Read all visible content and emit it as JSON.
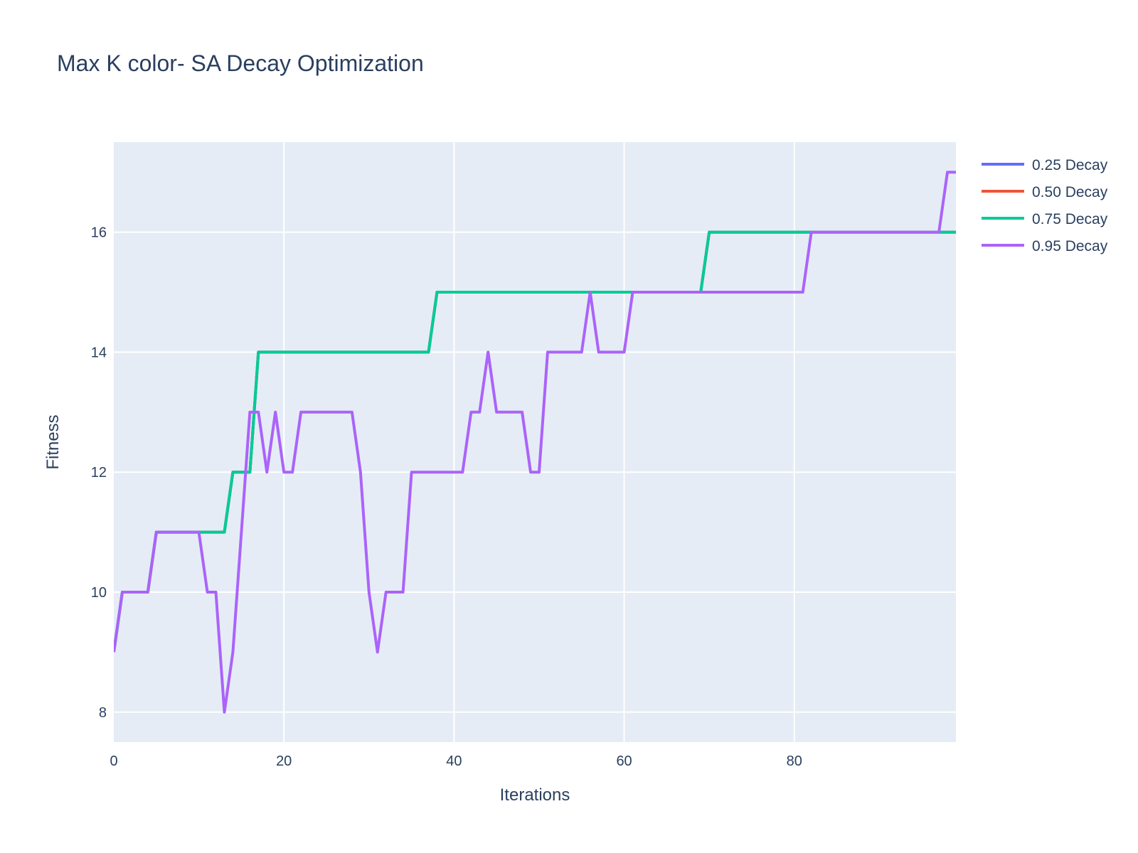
{
  "chart_data": {
    "type": "line",
    "title": "Max K color- SA Decay Optimization",
    "xlabel": "Iterations",
    "ylabel": "Fitness",
    "xlim": [
      0,
      99
    ],
    "ylim": [
      7.5,
      17.5
    ],
    "x_ticks": [
      0,
      20,
      40,
      60,
      80
    ],
    "x_tick_labels": [
      "0",
      "20",
      "40",
      "60",
      "80"
    ],
    "y_ticks": [
      8,
      10,
      12,
      14,
      16
    ],
    "y_tick_labels": [
      "8",
      "10",
      "12",
      "14",
      "16"
    ],
    "grid": true,
    "legend_position": "top-right",
    "plot_background": "#e5ecf6",
    "grid_color": "#ffffff",
    "series": [
      {
        "name": "0.25 Decay",
        "color": "#636efa",
        "values": [
          9,
          10,
          10,
          10,
          10,
          11,
          11,
          11,
          11,
          11,
          11,
          11,
          11,
          11,
          12,
          12,
          12,
          14,
          14,
          14,
          14,
          14,
          14,
          14,
          14,
          14,
          14,
          14,
          14,
          14,
          14,
          14,
          14,
          14,
          14,
          14,
          14,
          14,
          15,
          15,
          15,
          15,
          15,
          15,
          15,
          15,
          15,
          15,
          15,
          15,
          15,
          15,
          15,
          15,
          15,
          15,
          15,
          15,
          15,
          15,
          15,
          15,
          15,
          15,
          15,
          15,
          15,
          15,
          15,
          15,
          16,
          16,
          16,
          16,
          16,
          16,
          16,
          16,
          16,
          16,
          16,
          16,
          16,
          16,
          16,
          16,
          16,
          16,
          16,
          16,
          16,
          16,
          16,
          16,
          16,
          16,
          16,
          16,
          16,
          16
        ]
      },
      {
        "name": "0.50 Decay",
        "color": "#ef553b",
        "values": [
          9,
          10,
          10,
          10,
          10,
          11,
          11,
          11,
          11,
          11,
          11,
          11,
          11,
          11,
          12,
          12,
          12,
          14,
          14,
          14,
          14,
          14,
          14,
          14,
          14,
          14,
          14,
          14,
          14,
          14,
          14,
          14,
          14,
          14,
          14,
          14,
          14,
          14,
          15,
          15,
          15,
          15,
          15,
          15,
          15,
          15,
          15,
          15,
          15,
          15,
          15,
          15,
          15,
          15,
          15,
          15,
          15,
          15,
          15,
          15,
          15,
          15,
          15,
          15,
          15,
          15,
          15,
          15,
          15,
          15,
          16,
          16,
          16,
          16,
          16,
          16,
          16,
          16,
          16,
          16,
          16,
          16,
          16,
          16,
          16,
          16,
          16,
          16,
          16,
          16,
          16,
          16,
          16,
          16,
          16,
          16,
          16,
          16,
          16,
          16
        ]
      },
      {
        "name": "0.75 Decay",
        "color": "#00cc96",
        "values": [
          9,
          10,
          10,
          10,
          10,
          11,
          11,
          11,
          11,
          11,
          11,
          11,
          11,
          11,
          12,
          12,
          12,
          14,
          14,
          14,
          14,
          14,
          14,
          14,
          14,
          14,
          14,
          14,
          14,
          14,
          14,
          14,
          14,
          14,
          14,
          14,
          14,
          14,
          15,
          15,
          15,
          15,
          15,
          15,
          15,
          15,
          15,
          15,
          15,
          15,
          15,
          15,
          15,
          15,
          15,
          15,
          15,
          15,
          15,
          15,
          15,
          15,
          15,
          15,
          15,
          15,
          15,
          15,
          15,
          15,
          16,
          16,
          16,
          16,
          16,
          16,
          16,
          16,
          16,
          16,
          16,
          16,
          16,
          16,
          16,
          16,
          16,
          16,
          16,
          16,
          16,
          16,
          16,
          16,
          16,
          16,
          16,
          16,
          16,
          16
        ]
      },
      {
        "name": "0.95 Decay",
        "color": "#ab63fa",
        "values": [
          9,
          10,
          10,
          10,
          10,
          11,
          11,
          11,
          11,
          11,
          11,
          10,
          10,
          8,
          9,
          11,
          13,
          13,
          12,
          13,
          12,
          12,
          13,
          13,
          13,
          13,
          13,
          13,
          13,
          12,
          10,
          9,
          10,
          10,
          10,
          12,
          12,
          12,
          12,
          12,
          12,
          12,
          13,
          13,
          14,
          13,
          13,
          13,
          13,
          12,
          12,
          14,
          14,
          14,
          14,
          14,
          15,
          14,
          14,
          14,
          14,
          15,
          15,
          15,
          15,
          15,
          15,
          15,
          15,
          15,
          15,
          15,
          15,
          15,
          15,
          15,
          15,
          15,
          15,
          15,
          15,
          15,
          16,
          16,
          16,
          16,
          16,
          16,
          16,
          16,
          16,
          16,
          16,
          16,
          16,
          16,
          16,
          16,
          17,
          17
        ]
      }
    ]
  }
}
